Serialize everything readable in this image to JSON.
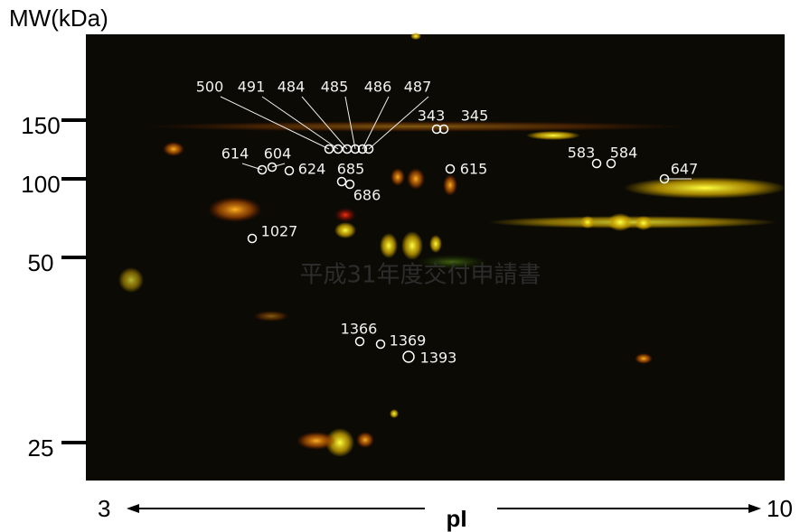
{
  "y_axis": {
    "title": "MW(kDa)",
    "ticks": [
      "150",
      "100",
      "50",
      "25"
    ]
  },
  "x_axis": {
    "left": "3",
    "label": "pI",
    "right": "10"
  },
  "spots": [
    {
      "label": "500"
    },
    {
      "label": "491"
    },
    {
      "label": "484"
    },
    {
      "label": "485"
    },
    {
      "label": "486"
    },
    {
      "label": "487"
    },
    {
      "label": "343"
    },
    {
      "label": "345"
    },
    {
      "label": "614"
    },
    {
      "label": "604"
    },
    {
      "label": "624"
    },
    {
      "label": "685"
    },
    {
      "label": "686"
    },
    {
      "label": "615"
    },
    {
      "label": "583"
    },
    {
      "label": "584"
    },
    {
      "label": "647"
    },
    {
      "label": "1027"
    },
    {
      "label": "1366"
    },
    {
      "label": "1369"
    },
    {
      "label": "1393"
    }
  ],
  "watermark": "平成31年度交付申請書"
}
